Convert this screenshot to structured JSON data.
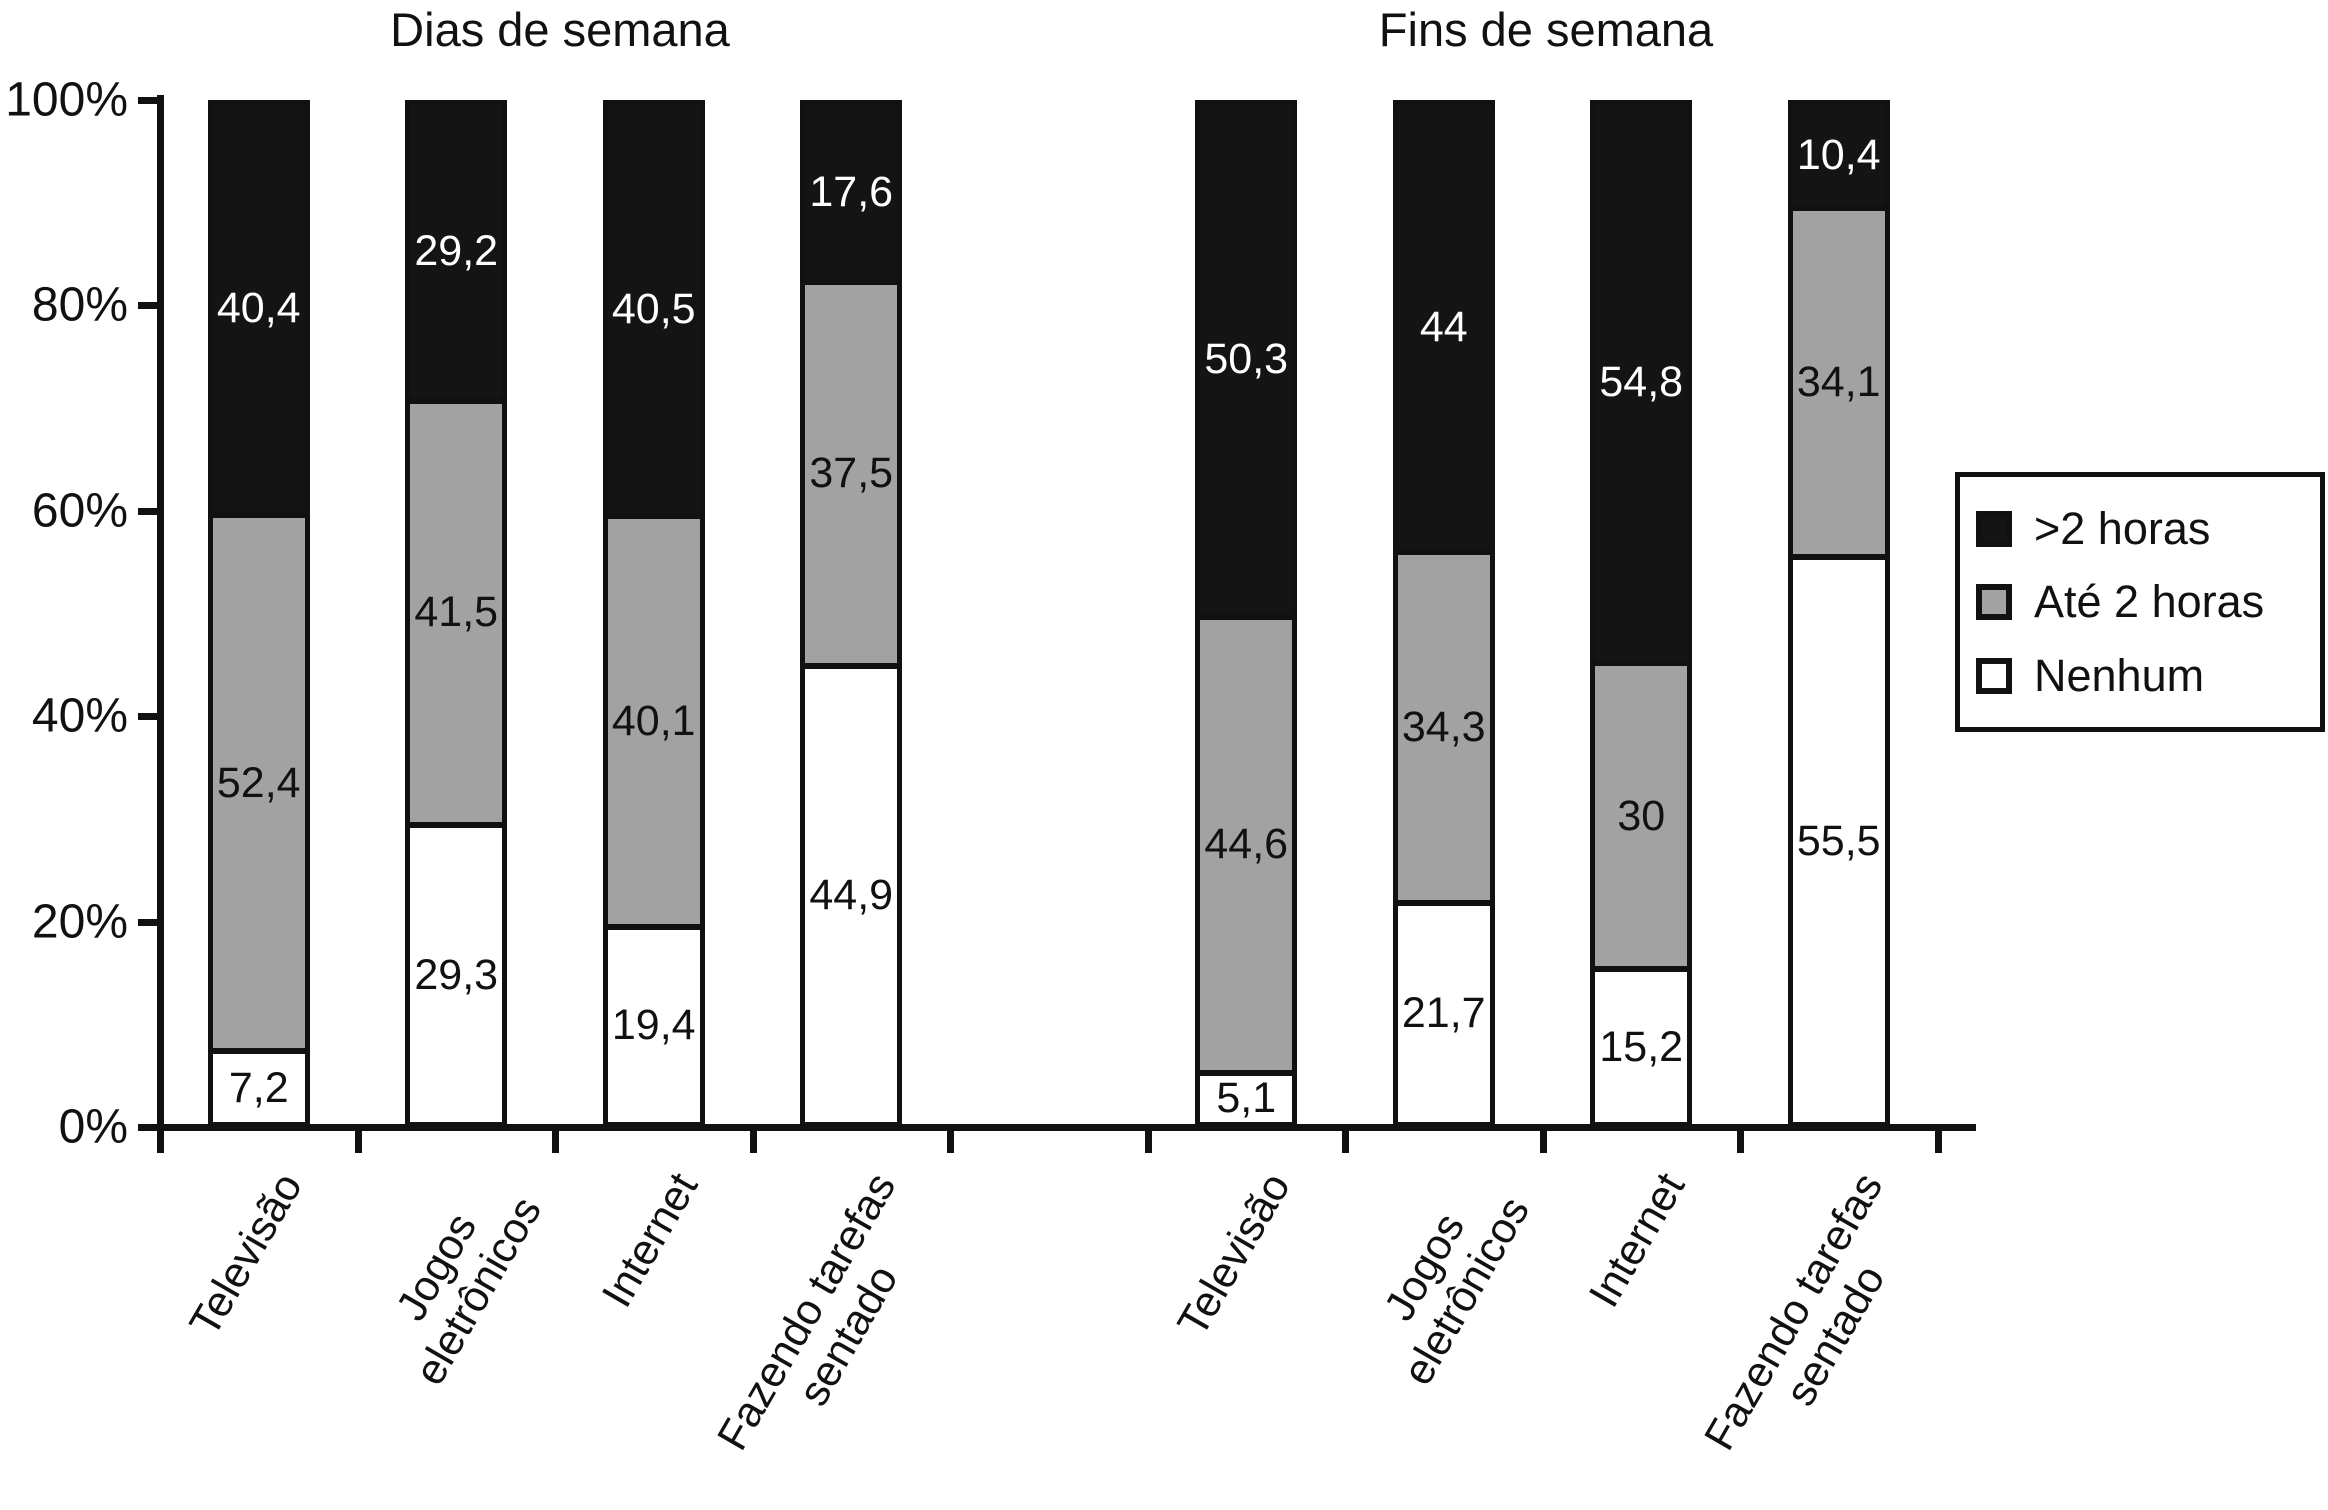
{
  "chart": {
    "y_axis_labels": [
      "100%",
      "80%",
      "60%",
      "40%",
      "20%",
      "0%"
    ]
  },
  "chart_data": {
    "type": "bar",
    "stacked": true,
    "unit": "percent",
    "ylim": [
      0,
      100
    ],
    "y_ticks": [
      0,
      20,
      40,
      60,
      80,
      100
    ],
    "grid": false,
    "legend_position": "right",
    "decimal_separator": ",",
    "series_colors": {
      ">2 horas": "#141414",
      "Até 2 horas": "#a2a2a2",
      "Nenhum": "#ffffff"
    },
    "groups": [
      {
        "title": "Dias de semana",
        "categories": [
          "Televisão",
          "Jogos eletrônicos",
          "Internet",
          "Fazendo tarefas sentado"
        ],
        "category_label_lines": [
          [
            "Televisão"
          ],
          [
            "Jogos",
            "eletrônicos"
          ],
          [
            "Internet"
          ],
          [
            "Fazendo tarefas",
            "sentado"
          ]
        ],
        "series": [
          {
            "name": ">2 horas",
            "values": [
              40.4,
              29.2,
              40.5,
              17.6
            ]
          },
          {
            "name": "Até 2 horas",
            "values": [
              52.4,
              41.5,
              40.1,
              37.5
            ]
          },
          {
            "name": "Nenhum",
            "values": [
              7.2,
              29.3,
              19.4,
              44.9
            ]
          }
        ]
      },
      {
        "title": "Fins de semana",
        "categories": [
          "Televisão",
          "Jogos eletrônicos",
          "Internet",
          "Fazendo tarefas sentado"
        ],
        "category_label_lines": [
          [
            "Televisão"
          ],
          [
            "Jogos",
            "eletrônicos"
          ],
          [
            "Internet"
          ],
          [
            "Fazendo tarefas",
            "sentado"
          ]
        ],
        "series": [
          {
            "name": ">2 horas",
            "values": [
              50.3,
              44,
              54.8,
              10.4
            ]
          },
          {
            "name": "Até 2 horas",
            "values": [
              44.6,
              34.3,
              30,
              34.1
            ]
          },
          {
            "name": "Nenhum",
            "values": [
              5.1,
              21.7,
              15.2,
              55.5
            ]
          }
        ]
      }
    ]
  },
  "legend": {
    "items": [
      {
        "label": ">2 horas"
      },
      {
        "label": "Até 2 horas"
      },
      {
        "label": "Nenhum"
      }
    ]
  }
}
